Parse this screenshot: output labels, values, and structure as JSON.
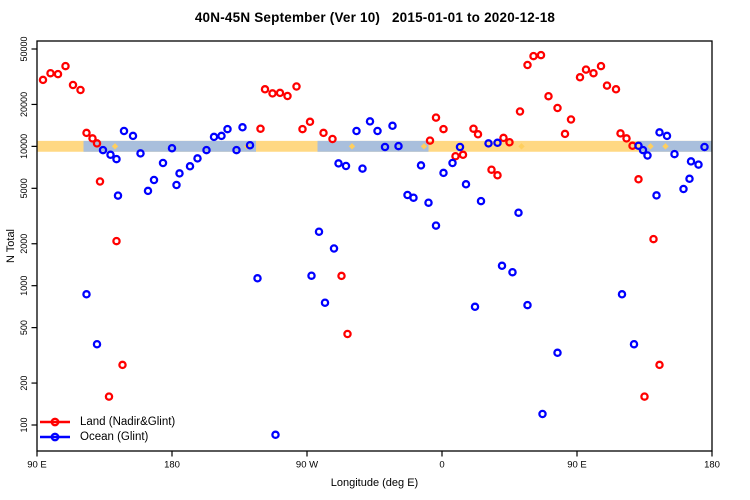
{
  "title": "40N-45N September (Ver 10)   2015-01-01 to 2020-12-18",
  "chart_data": {
    "type": "scatter",
    "title": "40N-45N September (Ver 10)   2015-01-01 to 2020-12-18",
    "xlabel": "Longitude (deg E)",
    "ylabel": "N Total",
    "x_axis": {
      "range_deg": [
        90,
        540
      ],
      "ticks_deg": [
        90,
        180,
        270,
        360,
        450,
        540
      ],
      "tick_labels": [
        "90 E",
        "180",
        "90 W",
        "0",
        "90 E",
        "180"
      ]
    },
    "y_axis": {
      "scale": "log10",
      "ticks": [
        100,
        200,
        500,
        1000,
        2000,
        5000,
        10000,
        20000,
        50000
      ],
      "tick_labels": [
        "100",
        "200",
        "500",
        "1000",
        "2000",
        "5000",
        "10000",
        "20000",
        "50000"
      ],
      "label_rotation": -90
    },
    "reference_band": {
      "value_range": [
        9150,
        10950
      ],
      "base_color": "#FFD883",
      "overlay_color": "#A9BFDC",
      "overlay_segments_deg": [
        [
          121,
          236
        ],
        [
          277,
          351
        ],
        [
          492,
          540
        ]
      ],
      "mark_color": "#FFCF5E",
      "marks_deg": [
        142,
        230,
        300,
        348,
        413,
        499,
        509
      ]
    },
    "legend_position": "bottom-left",
    "series": [
      {
        "name": "Land (Nadir&Glint)",
        "color": "#FF0000",
        "marker": "open-circle",
        "points": [
          [
            94,
            30000
          ],
          [
            99,
            33500
          ],
          [
            104,
            33000
          ],
          [
            109,
            37700
          ],
          [
            114,
            27600
          ],
          [
            119,
            25400
          ],
          [
            123,
            12500
          ],
          [
            127,
            11400
          ],
          [
            130,
            10500
          ],
          [
            132,
            5600
          ],
          [
            138,
            160
          ],
          [
            143,
            2090
          ],
          [
            147,
            270
          ],
          [
            239,
            13400
          ],
          [
            242,
            25700
          ],
          [
            247,
            24000
          ],
          [
            252,
            24200
          ],
          [
            257,
            23000
          ],
          [
            263,
            26900
          ],
          [
            267,
            13300
          ],
          [
            272,
            15000
          ],
          [
            281,
            12500
          ],
          [
            287,
            11300
          ],
          [
            293,
            1175
          ],
          [
            297,
            450
          ],
          [
            352,
            11000
          ],
          [
            356,
            16100
          ],
          [
            361,
            13300
          ],
          [
            369,
            8500
          ],
          [
            374,
            8700
          ],
          [
            381,
            13400
          ],
          [
            384,
            12200
          ],
          [
            393,
            6800
          ],
          [
            397,
            6200
          ],
          [
            401,
            11500
          ],
          [
            405,
            10700
          ],
          [
            412,
            17800
          ],
          [
            417,
            38400
          ],
          [
            421,
            44500
          ],
          [
            426,
            45200
          ],
          [
            431,
            22900
          ],
          [
            437,
            18850
          ],
          [
            442,
            12300
          ],
          [
            446,
            15600
          ],
          [
            452,
            31300
          ],
          [
            456,
            35600
          ],
          [
            461,
            33500
          ],
          [
            466,
            37700
          ],
          [
            470,
            27300
          ],
          [
            476,
            25700
          ],
          [
            479,
            12400
          ],
          [
            483,
            11400
          ],
          [
            487,
            10100
          ],
          [
            491,
            5800
          ],
          [
            495,
            160
          ],
          [
            501,
            2160
          ],
          [
            505,
            270
          ]
        ]
      },
      {
        "name": "Ocean (Glint)",
        "color": "#0000FF",
        "marker": "open-circle",
        "points": [
          [
            123,
            867
          ],
          [
            130,
            380
          ],
          [
            134,
            9400
          ],
          [
            139,
            8700
          ],
          [
            143,
            8100
          ],
          [
            144,
            4430
          ],
          [
            148,
            12900
          ],
          [
            154,
            11900
          ],
          [
            159,
            8900
          ],
          [
            164,
            4790
          ],
          [
            168,
            5740
          ],
          [
            174,
            7600
          ],
          [
            180,
            9700
          ],
          [
            183,
            5280
          ],
          [
            185,
            6400
          ],
          [
            192,
            7200
          ],
          [
            197,
            8200
          ],
          [
            203,
            9400
          ],
          [
            208,
            11700
          ],
          [
            213,
            11900
          ],
          [
            217,
            13300
          ],
          [
            223,
            9400
          ],
          [
            227,
            13700
          ],
          [
            232,
            10200
          ],
          [
            237,
            1130
          ],
          [
            249,
            85
          ],
          [
            273,
            1180
          ],
          [
            278,
            2440
          ],
          [
            282,
            755
          ],
          [
            288,
            1850
          ],
          [
            291,
            7550
          ],
          [
            296,
            7230
          ],
          [
            303,
            12900
          ],
          [
            307,
            6930
          ],
          [
            312,
            15100
          ],
          [
            317,
            12900
          ],
          [
            322,
            9900
          ],
          [
            327,
            14050
          ],
          [
            331,
            10050
          ],
          [
            337,
            4480
          ],
          [
            341,
            4280
          ],
          [
            346,
            7300
          ],
          [
            351,
            3940
          ],
          [
            356,
            2700
          ],
          [
            361,
            6450
          ],
          [
            367,
            7600
          ],
          [
            372,
            9900
          ],
          [
            376,
            5340
          ],
          [
            382,
            706
          ],
          [
            386,
            4050
          ],
          [
            391,
            10500
          ],
          [
            397,
            10600
          ],
          [
            400,
            1390
          ],
          [
            407,
            1250
          ],
          [
            411,
            3340
          ],
          [
            417,
            726
          ],
          [
            427,
            120
          ],
          [
            437,
            330
          ],
          [
            480,
            867
          ],
          [
            488,
            380
          ],
          [
            491,
            10100
          ],
          [
            494,
            9400
          ],
          [
            497,
            8600
          ],
          [
            503,
            4450
          ],
          [
            505,
            12600
          ],
          [
            510,
            11900
          ],
          [
            515,
            8800
          ],
          [
            521,
            4940
          ],
          [
            525,
            5850
          ],
          [
            526,
            7800
          ],
          [
            531,
            7400
          ],
          [
            535,
            9900
          ]
        ]
      }
    ]
  }
}
